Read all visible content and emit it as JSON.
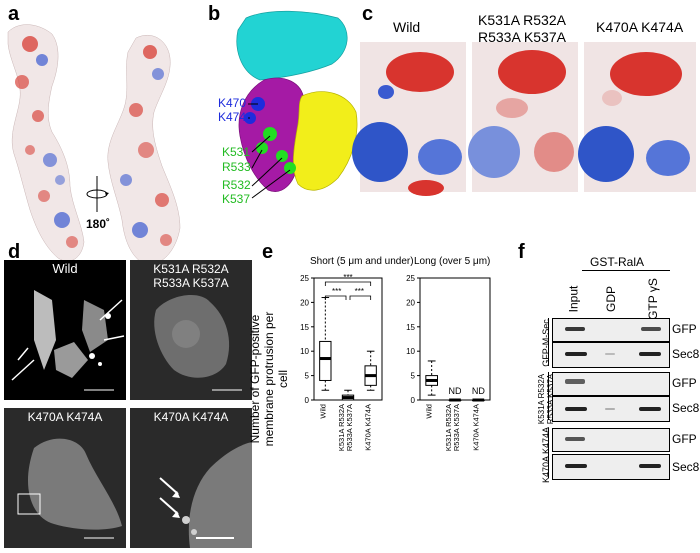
{
  "figure": {
    "panel_labels": [
      "a",
      "b",
      "c",
      "d",
      "e",
      "f"
    ]
  },
  "panel_a": {
    "rotation_label": "180˚",
    "colors": {
      "negative": "#d62a2a",
      "positive": "#2f55c8",
      "neutral": "#f4eeee"
    }
  },
  "panel_b": {
    "labels_blue": [
      "K470",
      "K474"
    ],
    "labels_green": [
      "K531",
      "R533",
      "R532",
      "K537"
    ],
    "colors": {
      "cyan": "#22d3d3",
      "magenta": "#a51aa5",
      "yellow": "#f2ee1a",
      "green": "#22dd22",
      "blue": "#1e2cdc"
    }
  },
  "panel_c": {
    "titles": [
      "Wild",
      "K531A R532A\nR533A K537A",
      "K470A K474A"
    ]
  },
  "panel_d": {
    "titles": [
      "Wild",
      "K531A R532A\nR533A K537A",
      "K470A K474A",
      "K470A K474A"
    ]
  },
  "panel_e": {
    "ylabel": "Number of GFP-positive\nmembrane protrusion per cell",
    "chart_data": [
      {
        "type": "box",
        "title": "Short (5 μm and under)",
        "categories": [
          "Wild",
          "K531A R532A\nR533A K537A",
          "K470A K474A"
        ],
        "ylim": [
          0,
          25
        ],
        "yticks": [
          0,
          5,
          10,
          15,
          20,
          25
        ],
        "boxes": [
          {
            "name": "Wild",
            "whisker_low": 2,
            "q1": 4,
            "median": 8.5,
            "q3": 12,
            "whisker_high": 21
          },
          {
            "name": "K531A R532A R533A K537A",
            "whisker_low": 0,
            "q1": 0,
            "median": 0.5,
            "q3": 1,
            "whisker_high": 2
          },
          {
            "name": "K470A K474A",
            "whisker_low": 2,
            "q1": 3,
            "median": 5,
            "q3": 7,
            "whisker_high": 10
          }
        ],
        "significance": [
          "***",
          "***",
          "***"
        ]
      },
      {
        "type": "box",
        "title": "Long (over 5 μm)",
        "categories": [
          "Wild",
          "K531A R532A\nR533A K537A",
          "K470A K474A"
        ],
        "ylim": [
          0,
          25
        ],
        "yticks": [
          0,
          5,
          10,
          15,
          20,
          25
        ],
        "boxes": [
          {
            "name": "Wild",
            "whisker_low": 1,
            "q1": 3,
            "median": 4,
            "q3": 5,
            "whisker_high": 8
          },
          {
            "name": "K531A R532A R533A K537A",
            "whisker_low": 0,
            "q1": 0,
            "median": 0,
            "q3": 0,
            "whisker_high": 0
          },
          {
            "name": "K470A K474A",
            "whisker_low": 0,
            "q1": 0,
            "median": 0,
            "q3": 0,
            "whisker_high": 0
          }
        ],
        "annotations": [
          "ND",
          "ND"
        ]
      }
    ]
  },
  "panel_f": {
    "header": "GST-RalA",
    "lanes": [
      "Input",
      "GDP",
      "GTP γS"
    ],
    "blot_labels": [
      "GFP",
      "Sec8",
      "GFP",
      "Sec8",
      "GFP",
      "Sec8"
    ],
    "group_labels": [
      "GFP-M-Sec",
      "K531A R532A\nR533A K537A",
      "K470A K474A"
    ]
  }
}
